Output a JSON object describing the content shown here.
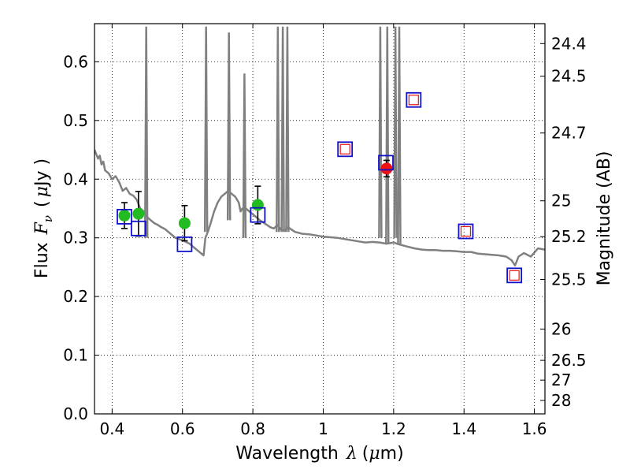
{
  "chart_data": {
    "type": "scatter",
    "xlabel": "Wavelength",
    "xlabel_math": "λ",
    "xlabel_unit_open": "(",
    "xlabel_unit_mu": "μ",
    "xlabel_unit_rest": "m)",
    "ylabel": "Flux",
    "ylabel_math": "F",
    "ylabel_math_sub": "ν",
    "ylabel_unit_open": "(",
    "ylabel_unit_mu": "μ",
    "ylabel_unit_rest": "Jy )",
    "y2label": "Magnitude (AB)",
    "xlim": [
      0.35,
      1.63
    ],
    "ylim": [
      0.0,
      0.665
    ],
    "grid": true,
    "x_ticks": [
      0.4,
      0.6,
      0.8,
      1.0,
      1.2,
      1.4,
      1.6
    ],
    "x_tick_labels": [
      "0.4",
      "0.6",
      "0.8",
      "1",
      "1.2",
      "1.4",
      "1.6"
    ],
    "y_ticks": [
      0.0,
      0.1,
      0.2,
      0.3,
      0.4,
      0.5,
      0.6
    ],
    "y_tick_labels": [
      "0.0",
      "0.1",
      "0.2",
      "0.3",
      "0.4",
      "0.5",
      "0.6"
    ],
    "mag_ticks": [
      24.4,
      24.5,
      24.7,
      25,
      25.2,
      25.5,
      26,
      26.5,
      27,
      28
    ],
    "mag_tick_labels": [
      "24.4",
      "24.5",
      "24.7",
      "25",
      "25.2",
      "25.5",
      "26",
      "26.5",
      "27",
      "28"
    ],
    "series": [
      {
        "name": "observed (green)",
        "color": "#22bb22",
        "marker": "circle",
        "x": [
          0.435,
          0.475,
          0.606,
          0.814
        ],
        "y": [
          0.338,
          0.341,
          0.325,
          0.356
        ],
        "yerr": [
          0.022,
          0.038,
          0.03,
          0.032
        ]
      },
      {
        "name": "observed (red)",
        "color": "#ee1111",
        "marker": "circle",
        "x": [
          1.18
        ],
        "y": [
          0.418
        ],
        "yerr": [
          0.014
        ]
      },
      {
        "name": "model photometry",
        "color": "#1111cc",
        "marker": "square",
        "x": [
          0.435,
          0.475,
          0.606,
          0.814,
          1.062,
          1.178,
          1.257,
          1.405,
          1.543
        ],
        "y": [
          0.336,
          0.316,
          0.289,
          0.339,
          0.451,
          0.428,
          0.535,
          0.311,
          0.236
        ]
      },
      {
        "name": "upper limits (red squares)",
        "color": "#ee1111",
        "marker": "square-small",
        "x": [
          1.062,
          1.257,
          1.405,
          1.543
        ],
        "y": [
          0.451,
          0.535,
          0.311,
          0.236
        ]
      }
    ],
    "spectrum": {
      "name": "model spectrum",
      "color": "#808080",
      "x": [
        0.35,
        0.36,
        0.365,
        0.37,
        0.375,
        0.38,
        0.39,
        0.4,
        0.41,
        0.42,
        0.43,
        0.44,
        0.45,
        0.46,
        0.47,
        0.48,
        0.49,
        0.5,
        0.51,
        0.52,
        0.53,
        0.54,
        0.55,
        0.56,
        0.57,
        0.58,
        0.59,
        0.6,
        0.61,
        0.62,
        0.63,
        0.64,
        0.65,
        0.66,
        0.665,
        0.672,
        0.68,
        0.69,
        0.7,
        0.71,
        0.72,
        0.73,
        0.74,
        0.75,
        0.76,
        0.765,
        0.77,
        0.78,
        0.79,
        0.8,
        0.81,
        0.82,
        0.83,
        0.84,
        0.85,
        0.86,
        0.87,
        0.88,
        0.89,
        0.9,
        0.92,
        0.94,
        0.96,
        0.98,
        1.0,
        1.02,
        1.04,
        1.06,
        1.08,
        1.1,
        1.12,
        1.14,
        1.16,
        1.18,
        1.2,
        1.215,
        1.24,
        1.26,
        1.28,
        1.3,
        1.32,
        1.34,
        1.36,
        1.38,
        1.4,
        1.42,
        1.44,
        1.46,
        1.48,
        1.5,
        1.52,
        1.535,
        1.545,
        1.555,
        1.57,
        1.59,
        1.61,
        1.63
      ],
      "y": [
        0.45,
        0.435,
        0.44,
        0.425,
        0.43,
        0.415,
        0.41,
        0.4,
        0.405,
        0.395,
        0.38,
        0.385,
        0.375,
        0.372,
        0.365,
        0.35,
        0.345,
        0.335,
        0.33,
        0.325,
        0.322,
        0.318,
        0.315,
        0.31,
        0.305,
        0.3,
        0.298,
        0.296,
        0.293,
        0.29,
        0.285,
        0.28,
        0.275,
        0.27,
        0.3,
        0.31,
        0.325,
        0.345,
        0.36,
        0.37,
        0.375,
        0.38,
        0.375,
        0.37,
        0.36,
        0.345,
        0.35,
        0.35,
        0.345,
        0.34,
        0.335,
        0.33,
        0.326,
        0.322,
        0.318,
        0.316,
        0.322,
        0.314,
        0.312,
        0.318,
        0.31,
        0.307,
        0.306,
        0.304,
        0.302,
        0.301,
        0.3,
        0.298,
        0.296,
        0.294,
        0.292,
        0.293,
        0.292,
        0.29,
        0.292,
        0.289,
        0.285,
        0.282,
        0.28,
        0.279,
        0.279,
        0.278,
        0.278,
        0.277,
        0.276,
        0.276,
        0.273,
        0.272,
        0.271,
        0.27,
        0.268,
        0.262,
        0.253,
        0.268,
        0.274,
        0.268,
        0.282,
        0.28
      ]
    },
    "emission_lines": [
      {
        "x": 0.497,
        "top": 0.66,
        "base": 0.3
      },
      {
        "x": 0.667,
        "top": 0.66,
        "base": 0.31
      },
      {
        "x": 0.732,
        "top": 0.65,
        "base": 0.33
      },
      {
        "x": 0.776,
        "top": 0.58,
        "base": 0.3
      },
      {
        "x": 0.871,
        "top": 0.66,
        "base": 0.31
      },
      {
        "x": 0.885,
        "top": 0.66,
        "base": 0.31
      },
      {
        "x": 0.898,
        "top": 0.66,
        "base": 0.31
      },
      {
        "x": 1.162,
        "top": 0.66,
        "base": 0.3
      },
      {
        "x": 1.182,
        "top": 0.66,
        "base": 0.29
      },
      {
        "x": 1.205,
        "top": 0.66,
        "base": 0.3
      },
      {
        "x": 1.216,
        "top": 0.66,
        "base": 0.29
      }
    ]
  }
}
